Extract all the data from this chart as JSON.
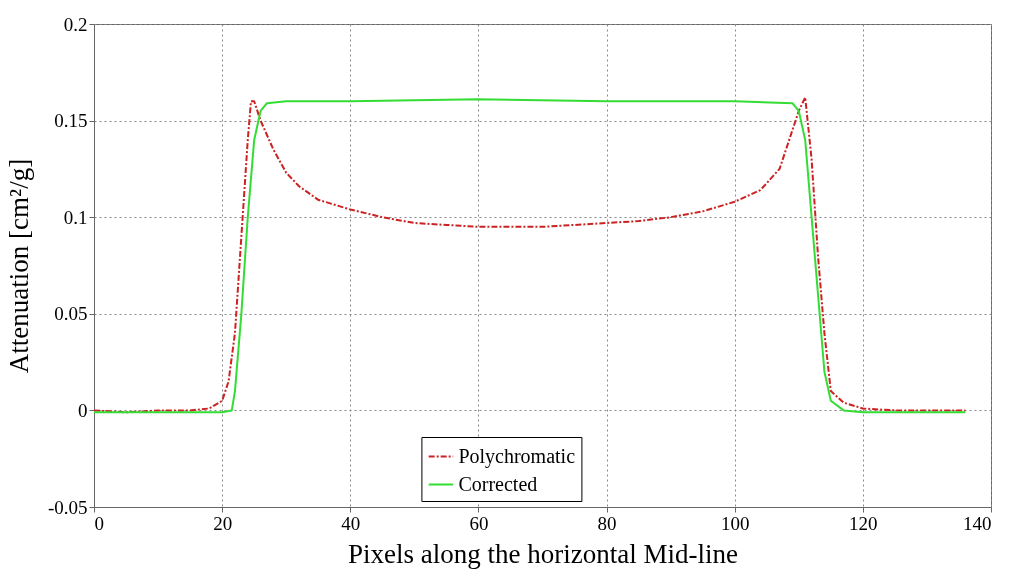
{
  "chart_data": {
    "type": "line",
    "xlabel": "Pixels along the horizontal Mid-line",
    "ylabel": "Attenuation [cm²/g]",
    "xlim": [
      0,
      140
    ],
    "xticks": [
      0,
      20,
      40,
      60,
      80,
      100,
      120,
      140
    ],
    "ylim": [
      -0.05,
      0.2
    ],
    "yticks": [
      -0.05,
      0,
      0.05,
      0.1,
      0.15,
      0.2
    ],
    "grid": true,
    "legend": "bottom",
    "marker": "none",
    "series": [
      {
        "name": "Polychromatic",
        "color": "#cc2222",
        "line_style": "dashdot",
        "x": [
          0,
          5,
          10,
          15,
          18,
          20,
          21,
          22,
          23,
          24,
          24.5,
          25,
          26,
          28,
          30,
          32,
          35,
          40,
          45,
          50,
          55,
          60,
          65,
          70,
          75,
          80,
          85,
          90,
          95,
          100,
          104,
          107,
          109,
          110,
          111,
          112,
          113,
          114,
          115,
          117,
          120,
          125,
          130,
          136
        ],
        "values": [
          0,
          -0.001,
          0,
          0,
          0.001,
          0.005,
          0.015,
          0.04,
          0.09,
          0.14,
          0.16,
          0.16,
          0.15,
          0.135,
          0.123,
          0.116,
          0.109,
          0.104,
          0.1,
          0.097,
          0.096,
          0.095,
          0.095,
          0.095,
          0.096,
          0.097,
          0.098,
          0.1,
          0.103,
          0.108,
          0.114,
          0.125,
          0.145,
          0.155,
          0.162,
          0.13,
          0.08,
          0.04,
          0.01,
          0.004,
          0.001,
          0,
          0,
          0
        ]
      },
      {
        "name": "Corrected",
        "color": "#33dd33",
        "line_style": "solid",
        "x": [
          0,
          10,
          20,
          21.5,
          22,
          23,
          24,
          25,
          26,
          27,
          30,
          40,
          60,
          80,
          100,
          109,
          110,
          111,
          112,
          113,
          114,
          115,
          117,
          120,
          136
        ],
        "values": [
          -0.001,
          -0.001,
          -0.001,
          0,
          0.01,
          0.05,
          0.1,
          0.14,
          0.155,
          0.159,
          0.16,
          0.16,
          0.161,
          0.16,
          0.16,
          0.159,
          0.155,
          0.14,
          0.1,
          0.06,
          0.02,
          0.005,
          0,
          -0.001,
          -0.001
        ]
      }
    ]
  }
}
